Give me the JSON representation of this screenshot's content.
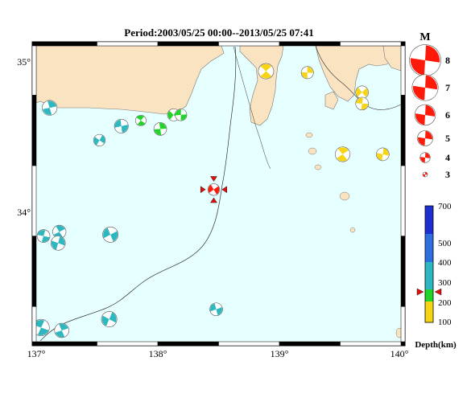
{
  "title": "Period:2003/05/25 00:00--2013/05/25 07:41",
  "axes": {
    "lon_ticks": [
      "137°",
      "138°",
      "139°",
      "140°"
    ],
    "lat_ticks": [
      "35°",
      "34°"
    ],
    "lon_range": [
      137,
      140
    ],
    "lat_range": [
      33.0,
      35.1
    ]
  },
  "colors": {
    "sea": "#e6ffff",
    "land": "#f9e3c1",
    "shallow": "#2db8c0",
    "green": "#22d42a",
    "yellow": "#f7d414",
    "red": "#ff1a0a",
    "frame_black": "#000000"
  },
  "magnitude_legend": {
    "title": "M",
    "labels": [
      "8",
      "7",
      "6",
      "5",
      "4",
      "3"
    ]
  },
  "depth_legend": {
    "title": "Depth(km)",
    "labels": [
      "700",
      "500",
      "400",
      "300",
      "200",
      "100"
    ],
    "current_depth_marker": 245
  },
  "events": [
    {
      "lon": 137.11,
      "lat": 34.66,
      "mag": 4.9,
      "depth": "shallow"
    },
    {
      "lon": 137.52,
      "lat": 34.43,
      "mag": 4.3,
      "depth": "shallow"
    },
    {
      "lon": 137.7,
      "lat": 34.53,
      "mag": 4.7,
      "depth": "shallow"
    },
    {
      "lon": 137.86,
      "lat": 34.57,
      "mag": 4.1,
      "depth": "green"
    },
    {
      "lon": 138.02,
      "lat": 34.51,
      "mag": 4.5,
      "depth": "green"
    },
    {
      "lon": 138.13,
      "lat": 34.61,
      "mag": 4.4,
      "depth": "green"
    },
    {
      "lon": 138.19,
      "lat": 34.61,
      "mag": 4.3,
      "depth": "green"
    },
    {
      "lon": 138.89,
      "lat": 34.92,
      "mag": 5.0,
      "depth": "yellow"
    },
    {
      "lon": 139.23,
      "lat": 34.91,
      "mag": 4.4,
      "depth": "yellow"
    },
    {
      "lon": 139.68,
      "lat": 34.77,
      "mag": 4.5,
      "depth": "yellow"
    },
    {
      "lon": 139.68,
      "lat": 34.69,
      "mag": 4.5,
      "depth": "yellow"
    },
    {
      "lon": 139.52,
      "lat": 34.33,
      "mag": 4.9,
      "depth": "yellow"
    },
    {
      "lon": 139.85,
      "lat": 34.33,
      "mag": 4.5,
      "depth": "yellow"
    },
    {
      "lon": 138.46,
      "lat": 34.08,
      "mag": 4.3,
      "depth": "red",
      "highlight": true
    },
    {
      "lon": 137.06,
      "lat": 33.75,
      "mag": 4.5,
      "depth": "shallow"
    },
    {
      "lon": 137.19,
      "lat": 33.78,
      "mag": 4.6,
      "depth": "shallow"
    },
    {
      "lon": 137.18,
      "lat": 33.7,
      "mag": 4.8,
      "depth": "shallow"
    },
    {
      "lon": 137.61,
      "lat": 33.76,
      "mag": 5.0,
      "depth": "shallow"
    },
    {
      "lon": 137.04,
      "lat": 33.1,
      "mag": 5.2,
      "depth": "shallow"
    },
    {
      "lon": 137.21,
      "lat": 33.08,
      "mag": 4.8,
      "depth": "shallow"
    },
    {
      "lon": 137.6,
      "lat": 33.16,
      "mag": 5.0,
      "depth": "shallow"
    },
    {
      "lon": 138.48,
      "lat": 33.23,
      "mag": 4.5,
      "depth": "shallow"
    }
  ]
}
